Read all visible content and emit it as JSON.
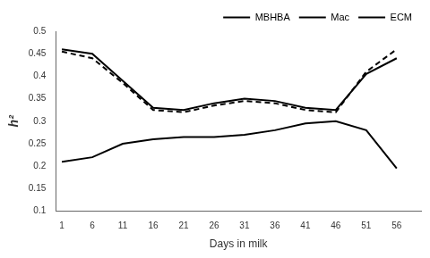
{
  "chart_data": {
    "type": "line",
    "x": [
      1,
      6,
      11,
      16,
      21,
      26,
      31,
      36,
      41,
      46,
      51,
      56
    ],
    "series": [
      {
        "name": "MBHBA",
        "color": "#000000",
        "line_style": "solid",
        "values": [
          0.46,
          0.45,
          0.39,
          0.33,
          0.325,
          0.34,
          0.35,
          0.345,
          0.33,
          0.325,
          0.405,
          0.44
        ]
      },
      {
        "name": "Mac",
        "color": "#000000",
        "line_style": "dashed",
        "values": [
          0.455,
          0.44,
          0.385,
          0.325,
          0.32,
          0.335,
          0.345,
          0.34,
          0.325,
          0.32,
          0.41,
          0.46
        ]
      },
      {
        "name": "ECM",
        "color": "#000000",
        "line_style": "solid",
        "values": [
          0.21,
          0.22,
          0.25,
          0.26,
          0.265,
          0.265,
          0.27,
          0.28,
          0.295,
          0.3,
          0.28,
          0.195
        ]
      }
    ],
    "xlabel": "Days in milk",
    "ylabel": "h²",
    "xlim": [
      0,
      60
    ],
    "xticks": [
      1,
      6,
      11,
      16,
      21,
      26,
      31,
      36,
      41,
      46,
      51,
      56
    ],
    "ylim": [
      0.1,
      0.5
    ],
    "yticks": [
      0.1,
      0.15,
      0.2,
      0.25,
      0.3,
      0.35,
      0.4,
      0.45,
      0.5
    ],
    "grid": false,
    "legend": "upper right"
  }
}
